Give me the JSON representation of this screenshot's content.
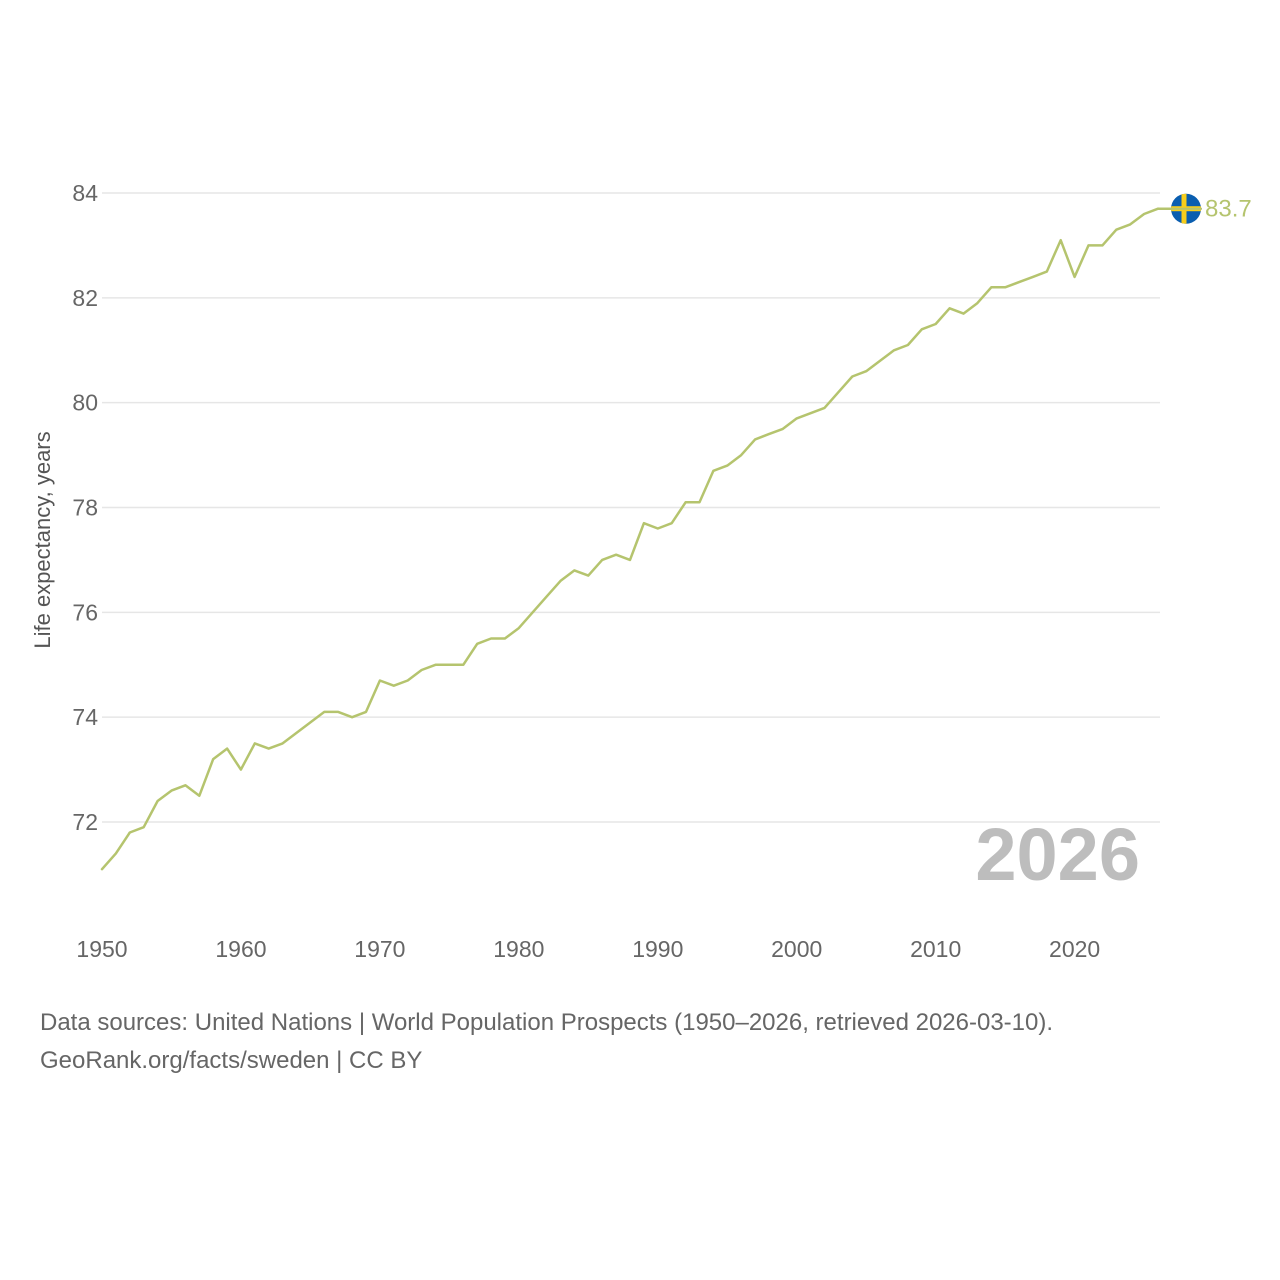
{
  "chart_data": {
    "type": "line",
    "title": "",
    "xlabel": "",
    "ylabel": "Life expectancy, years",
    "xlim": [
      1950,
      2026
    ],
    "ylim": [
      70.8,
      85.5
    ],
    "x_ticks": [
      1950,
      1960,
      1970,
      1980,
      1990,
      2000,
      2010,
      2020
    ],
    "y_ticks": [
      72,
      74,
      76,
      78,
      80,
      82,
      84
    ],
    "grid": true,
    "year_overlay": "2026",
    "series": [
      {
        "name": "Sweden",
        "color": "#b5c46e",
        "end_label": "83.7",
        "flag": "sweden-flag",
        "x": [
          1950,
          1951,
          1952,
          1953,
          1954,
          1955,
          1956,
          1957,
          1958,
          1959,
          1960,
          1961,
          1962,
          1963,
          1964,
          1965,
          1966,
          1967,
          1968,
          1969,
          1970,
          1971,
          1972,
          1973,
          1974,
          1975,
          1976,
          1977,
          1978,
          1979,
          1980,
          1981,
          1982,
          1983,
          1984,
          1985,
          1986,
          1987,
          1988,
          1989,
          1990,
          1991,
          1992,
          1993,
          1994,
          1995,
          1996,
          1997,
          1998,
          1999,
          2000,
          2001,
          2002,
          2003,
          2004,
          2005,
          2006,
          2007,
          2008,
          2009,
          2010,
          2011,
          2012,
          2013,
          2014,
          2015,
          2016,
          2017,
          2018,
          2019,
          2020,
          2021,
          2022,
          2023,
          2024,
          2025,
          2026
        ],
        "values": [
          71.1,
          71.4,
          71.8,
          71.9,
          72.4,
          72.6,
          72.7,
          72.5,
          73.2,
          73.4,
          73.0,
          73.5,
          73.4,
          73.5,
          73.7,
          73.9,
          74.1,
          74.1,
          74.0,
          74.1,
          74.7,
          74.6,
          74.7,
          74.9,
          75.0,
          75.0,
          75.0,
          75.4,
          75.5,
          75.5,
          75.7,
          76.0,
          76.3,
          76.6,
          76.8,
          76.7,
          77.0,
          77.1,
          77.0,
          77.7,
          77.6,
          77.7,
          78.1,
          78.1,
          78.7,
          78.8,
          79.0,
          79.3,
          79.4,
          79.5,
          79.7,
          79.8,
          79.9,
          80.2,
          80.5,
          80.6,
          80.8,
          81.0,
          81.1,
          81.4,
          81.5,
          81.8,
          81.7,
          81.9,
          82.2,
          82.2,
          82.3,
          82.4,
          82.5,
          83.1,
          82.4,
          83.0,
          83.0,
          83.3,
          83.4,
          83.6,
          83.7
        ]
      }
    ]
  },
  "source": {
    "line1": "Data sources: United Nations | World Population Prospects (1950–2026, retrieved 2026-03-10).",
    "line2": "GeoRank.org/facts/sweden | CC BY"
  }
}
